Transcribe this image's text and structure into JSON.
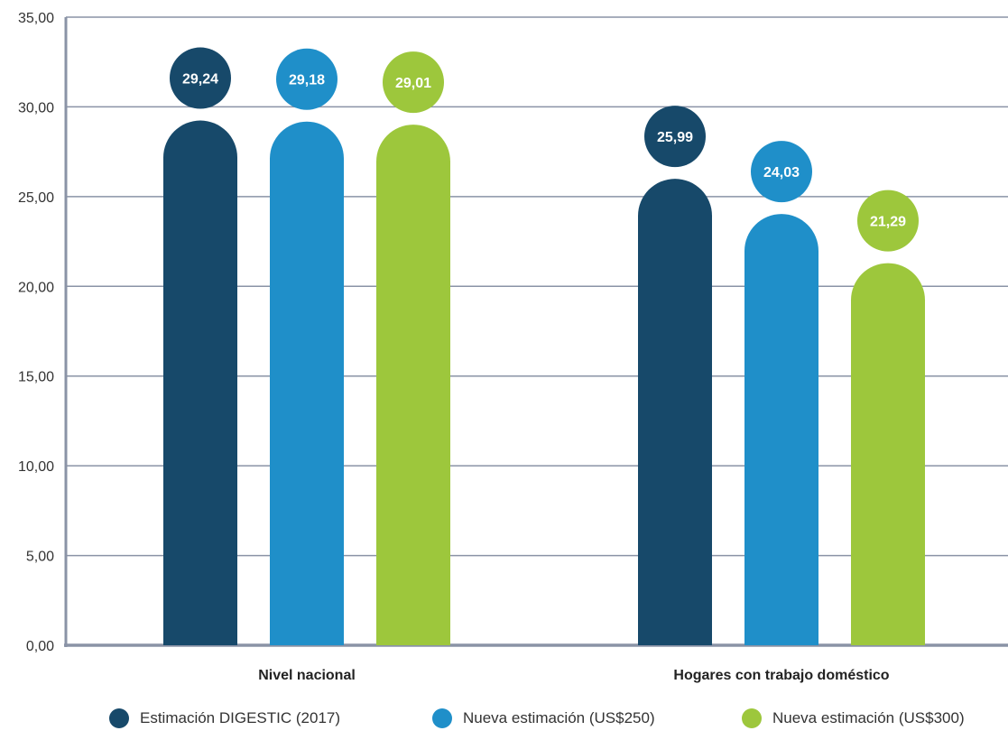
{
  "chart_data": {
    "type": "bar",
    "categories": [
      "Nivel nacional",
      "Hogares con trabajo doméstico"
    ],
    "series": [
      {
        "name": "Estimación DIGESTIC (2017)",
        "values": [
          29.24,
          25.99
        ],
        "labels": [
          "29,24",
          "25,99"
        ],
        "color": "#17496a"
      },
      {
        "name": "Nueva estimación (US$250)",
        "values": [
          29.18,
          24.03
        ],
        "labels": [
          "29,18",
          "24,03"
        ],
        "color": "#1f8fc9"
      },
      {
        "name": "Nueva estimación (US$300)",
        "values": [
          29.01,
          21.29
        ],
        "labels": [
          "29,01",
          "21,29"
        ],
        "color": "#9dc73c"
      }
    ],
    "ylim": [
      0,
      35
    ],
    "y_ticks": [
      0,
      5,
      10,
      15,
      20,
      25,
      30,
      35
    ],
    "y_tick_labels": [
      "0,00",
      "5,00",
      "10,00",
      "15,00",
      "20,00",
      "25,00",
      "30,00",
      "35,00"
    ],
    "grid": true,
    "legend_position": "bottom"
  }
}
